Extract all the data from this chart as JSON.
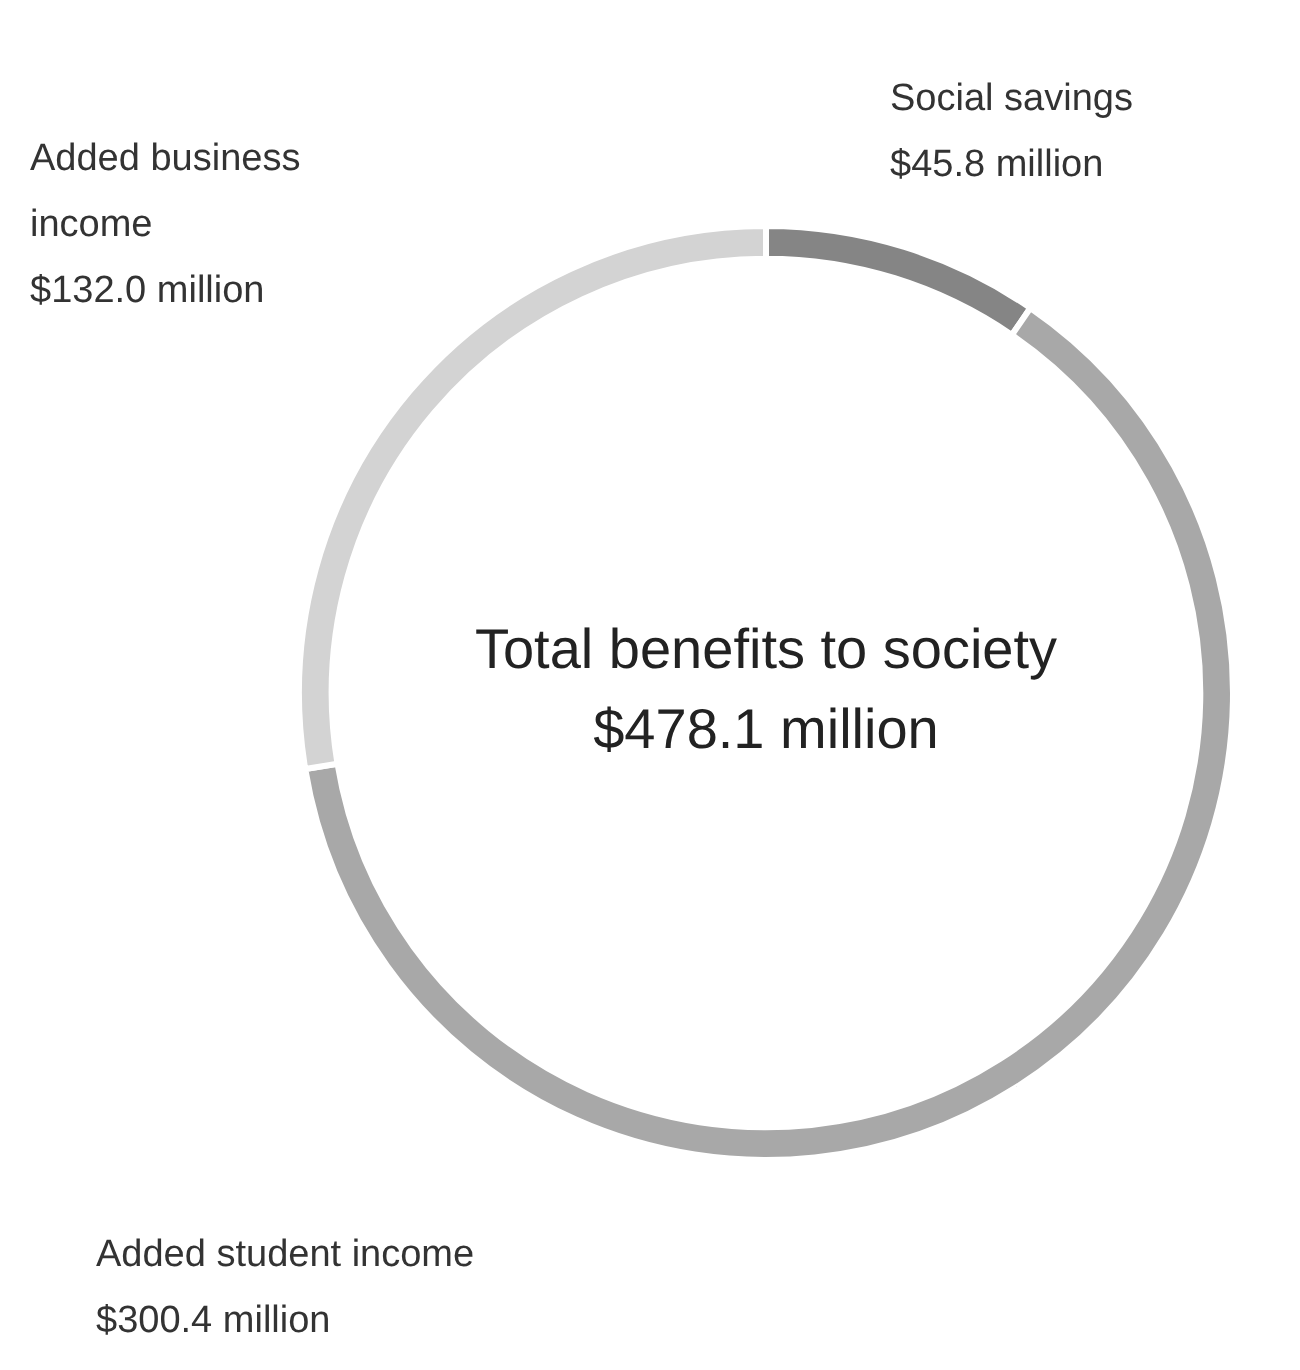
{
  "chart_data": {
    "type": "donut",
    "categories": [
      "Social savings",
      "Added student income",
      "Added business income"
    ],
    "values": [
      45.8,
      300.4,
      132.0
    ],
    "colors": [
      "#858585",
      "#a8a8a8",
      "#d3d3d3"
    ],
    "value_labels": [
      "$45.8 million",
      "$300.4 million",
      "$132.0 million"
    ],
    "annotations": [
      "Total benefits to society",
      "$478.1 million"
    ],
    "legend": false
  }
}
